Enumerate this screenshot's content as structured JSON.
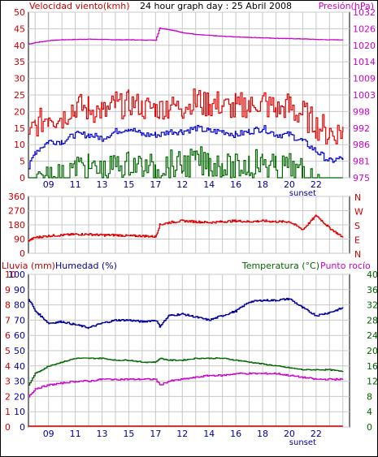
{
  "title": "24 hour graph day : 25 Abril 2008",
  "colors": {
    "wind_avg": "#0000cc",
    "wind_gust": "#dd0000",
    "wind_green": "#006600",
    "pressure": "#cc00cc",
    "direction": "#dd0000",
    "humidity": "#000099",
    "temperature": "#006600",
    "dewpoint": "#cc00cc",
    "rain": "#cc0000",
    "grid": "#c8c8c8",
    "red_text": "#cc0000",
    "blue_text": "#000099",
    "green_text": "#006600",
    "magenta_text": "#cc00cc"
  },
  "x_axis": {
    "hour_labels": [
      "09",
      "11",
      "13",
      "15",
      "17",
      "12",
      "14",
      "16",
      "18",
      "20",
      "22"
    ],
    "sunset_label": "sunset"
  },
  "panel1": {
    "left_label": "Velocidad viento(kmh)",
    "right_label": "Presión(hPa)",
    "left_ticks": [
      "50",
      "45",
      "40",
      "35",
      "30",
      "25",
      "20",
      "15",
      "10",
      "5",
      "0"
    ],
    "right_ticks": [
      "1032",
      "1026",
      "1020",
      "1014",
      "1009",
      "1003",
      "998",
      "992",
      "986",
      "981",
      "975"
    ]
  },
  "panel2": {
    "left_ticks": [
      "360",
      "270",
      "180",
      "90",
      "0"
    ],
    "right_letters": [
      "N",
      "W",
      "S",
      "E",
      "N"
    ]
  },
  "panel3": {
    "left_label_rain": "Lluvia (mm)",
    "left_label_hum": "Humedad (%)",
    "right_label_temp": "Temperatura (°C)",
    "right_label_dew": "Punto rocío",
    "rain_ticks": [
      "10",
      "9",
      "8",
      "7",
      "6",
      "5",
      "4",
      "3",
      "2",
      "1",
      "0"
    ],
    "hum_ticks": [
      "100",
      "90",
      "80",
      "70",
      "60",
      "50",
      "40",
      "30",
      "20",
      "10",
      "0"
    ],
    "right_ticks": [
      "40",
      "36",
      "32",
      "28",
      "24",
      "20",
      "16",
      "12",
      "8",
      "4",
      "0"
    ]
  },
  "chart_data": [
    {
      "type": "line",
      "title": "24 hour graph day : 25 Abril 2008",
      "ylabel": "Velocidad viento(kmh)",
      "y2label": "Presión(hPa)",
      "ylim": [
        0,
        50
      ],
      "y2lim": [
        975,
        1032
      ],
      "x": [
        7.5,
        8,
        9,
        10,
        11,
        12,
        13,
        14,
        15,
        16,
        17,
        17.3,
        18,
        19,
        20,
        21,
        22,
        23,
        24,
        25,
        26,
        27,
        28,
        29,
        30,
        31
      ],
      "series": [
        {
          "name": "Presión(hPa)",
          "axis": "right",
          "values": [
            1021,
            1021.5,
            1022.2,
            1022.5,
            1022.6,
            1022.7,
            1022.6,
            1022.5,
            1022.5,
            1022.4,
            1022.4,
            1026.5,
            1026,
            1025,
            1024.3,
            1024,
            1023.7,
            1023.5,
            1023.3,
            1023.2,
            1023,
            1022.9,
            1022.8,
            1022.6,
            1022.5,
            1022.5
          ]
        },
        {
          "name": "Velocidad viento(kmh)",
          "axis": "left",
          "values": [
            3,
            8,
            11,
            11,
            13,
            13,
            12,
            14,
            15,
            13,
            13,
            13,
            14,
            14,
            15,
            14,
            14,
            13,
            14,
            15,
            13,
            13,
            11,
            8,
            5,
            6
          ]
        }
      ]
    },
    {
      "type": "line",
      "ylim": [
        0,
        360
      ],
      "x": [
        7.5,
        8,
        9,
        10,
        11,
        12,
        13,
        14,
        15,
        16,
        17,
        17.3,
        18,
        19,
        20,
        21,
        22,
        23,
        24,
        25,
        26,
        27,
        28,
        29,
        30,
        31
      ],
      "series": [
        {
          "values": [
            80,
            100,
            110,
            115,
            120,
            120,
            115,
            115,
            110,
            110,
            105,
            180,
            195,
            205,
            200,
            195,
            200,
            205,
            200,
            205,
            200,
            200,
            150,
            240,
            160,
            100
          ]
        }
      ]
    },
    {
      "type": "line",
      "ylabel": "Humedad (%)",
      "y2label": "Temperatura (°C)",
      "ylim": [
        0,
        100
      ],
      "y2lim": [
        0,
        40
      ],
      "x": [
        7.5,
        8,
        9,
        10,
        11,
        12,
        13,
        14,
        15,
        16,
        17,
        17.3,
        18,
        19,
        20,
        21,
        22,
        23,
        24,
        25,
        26,
        27,
        28,
        29,
        30,
        31
      ],
      "series": [
        {
          "name": "Humedad (%)",
          "axis": "left",
          "values": [
            84,
            76,
            68,
            69,
            67,
            65,
            68,
            70,
            70,
            69,
            70,
            66,
            73,
            74,
            72,
            70,
            73,
            76,
            82,
            83,
            83,
            84,
            78,
            73,
            75,
            78
          ]
        },
        {
          "name": "Temperatura (°C)",
          "axis": "right",
          "values": [
            11,
            14,
            16,
            17,
            18,
            18,
            18,
            17.5,
            17.5,
            17,
            17,
            18,
            17.5,
            17.5,
            18,
            18,
            18,
            17.5,
            17,
            16.5,
            16,
            15.5,
            15,
            15,
            15,
            14.5
          ]
        },
        {
          "name": "Punto rocío",
          "axis": "right",
          "values": [
            8,
            10,
            11,
            11.5,
            12,
            12,
            12.5,
            12.5,
            12.5,
            12.5,
            12.5,
            11,
            12,
            12.5,
            13,
            13.5,
            13.5,
            14,
            14,
            14,
            14,
            13.5,
            13,
            12.5,
            12.5,
            12.5
          ]
        },
        {
          "name": "Lluvia (mm)",
          "axis": "left",
          "values": [
            0,
            0,
            0,
            0,
            0,
            0,
            0,
            0,
            0,
            0,
            0,
            0,
            0,
            0,
            0,
            0,
            0,
            0,
            0,
            0,
            0,
            0,
            0,
            0,
            0,
            0
          ]
        }
      ]
    }
  ]
}
